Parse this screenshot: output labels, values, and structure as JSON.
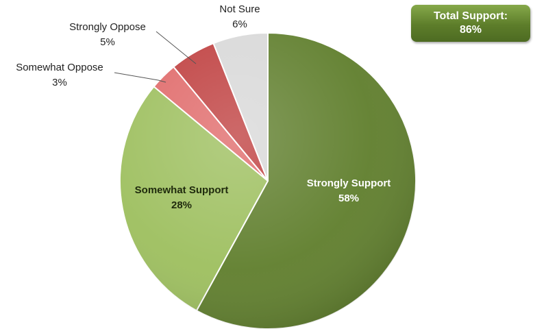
{
  "chart_data": {
    "type": "pie",
    "start_angle_deg": 0,
    "direction": "clockwise",
    "slices": [
      {
        "label": "Strongly Support",
        "value": 58,
        "value_label": "58%",
        "color": "#5f7e2c",
        "label_position": "inside",
        "label_color": "#ffffff"
      },
      {
        "label": "Somewhat Support",
        "value": 28,
        "value_label": "28%",
        "color": "#9dbf5e",
        "label_position": "inside",
        "label_color": "#1f2a0d"
      },
      {
        "label": "Somewhat Oppose",
        "value": 3,
        "value_label": "3%",
        "color": "#e06a6a",
        "label_position": "outside",
        "label_color": "#222222"
      },
      {
        "label": "Strongly Oppose",
        "value": 5,
        "value_label": "5%",
        "color": "#bf3f3f",
        "label_position": "outside",
        "label_color": "#222222"
      },
      {
        "label": "Not Sure",
        "value": 6,
        "value_label": "6%",
        "color": "#d8d8d8",
        "label_position": "outside",
        "label_color": "#222222"
      }
    ],
    "annotation": {
      "label": "Total Support:",
      "value": "86%"
    }
  }
}
